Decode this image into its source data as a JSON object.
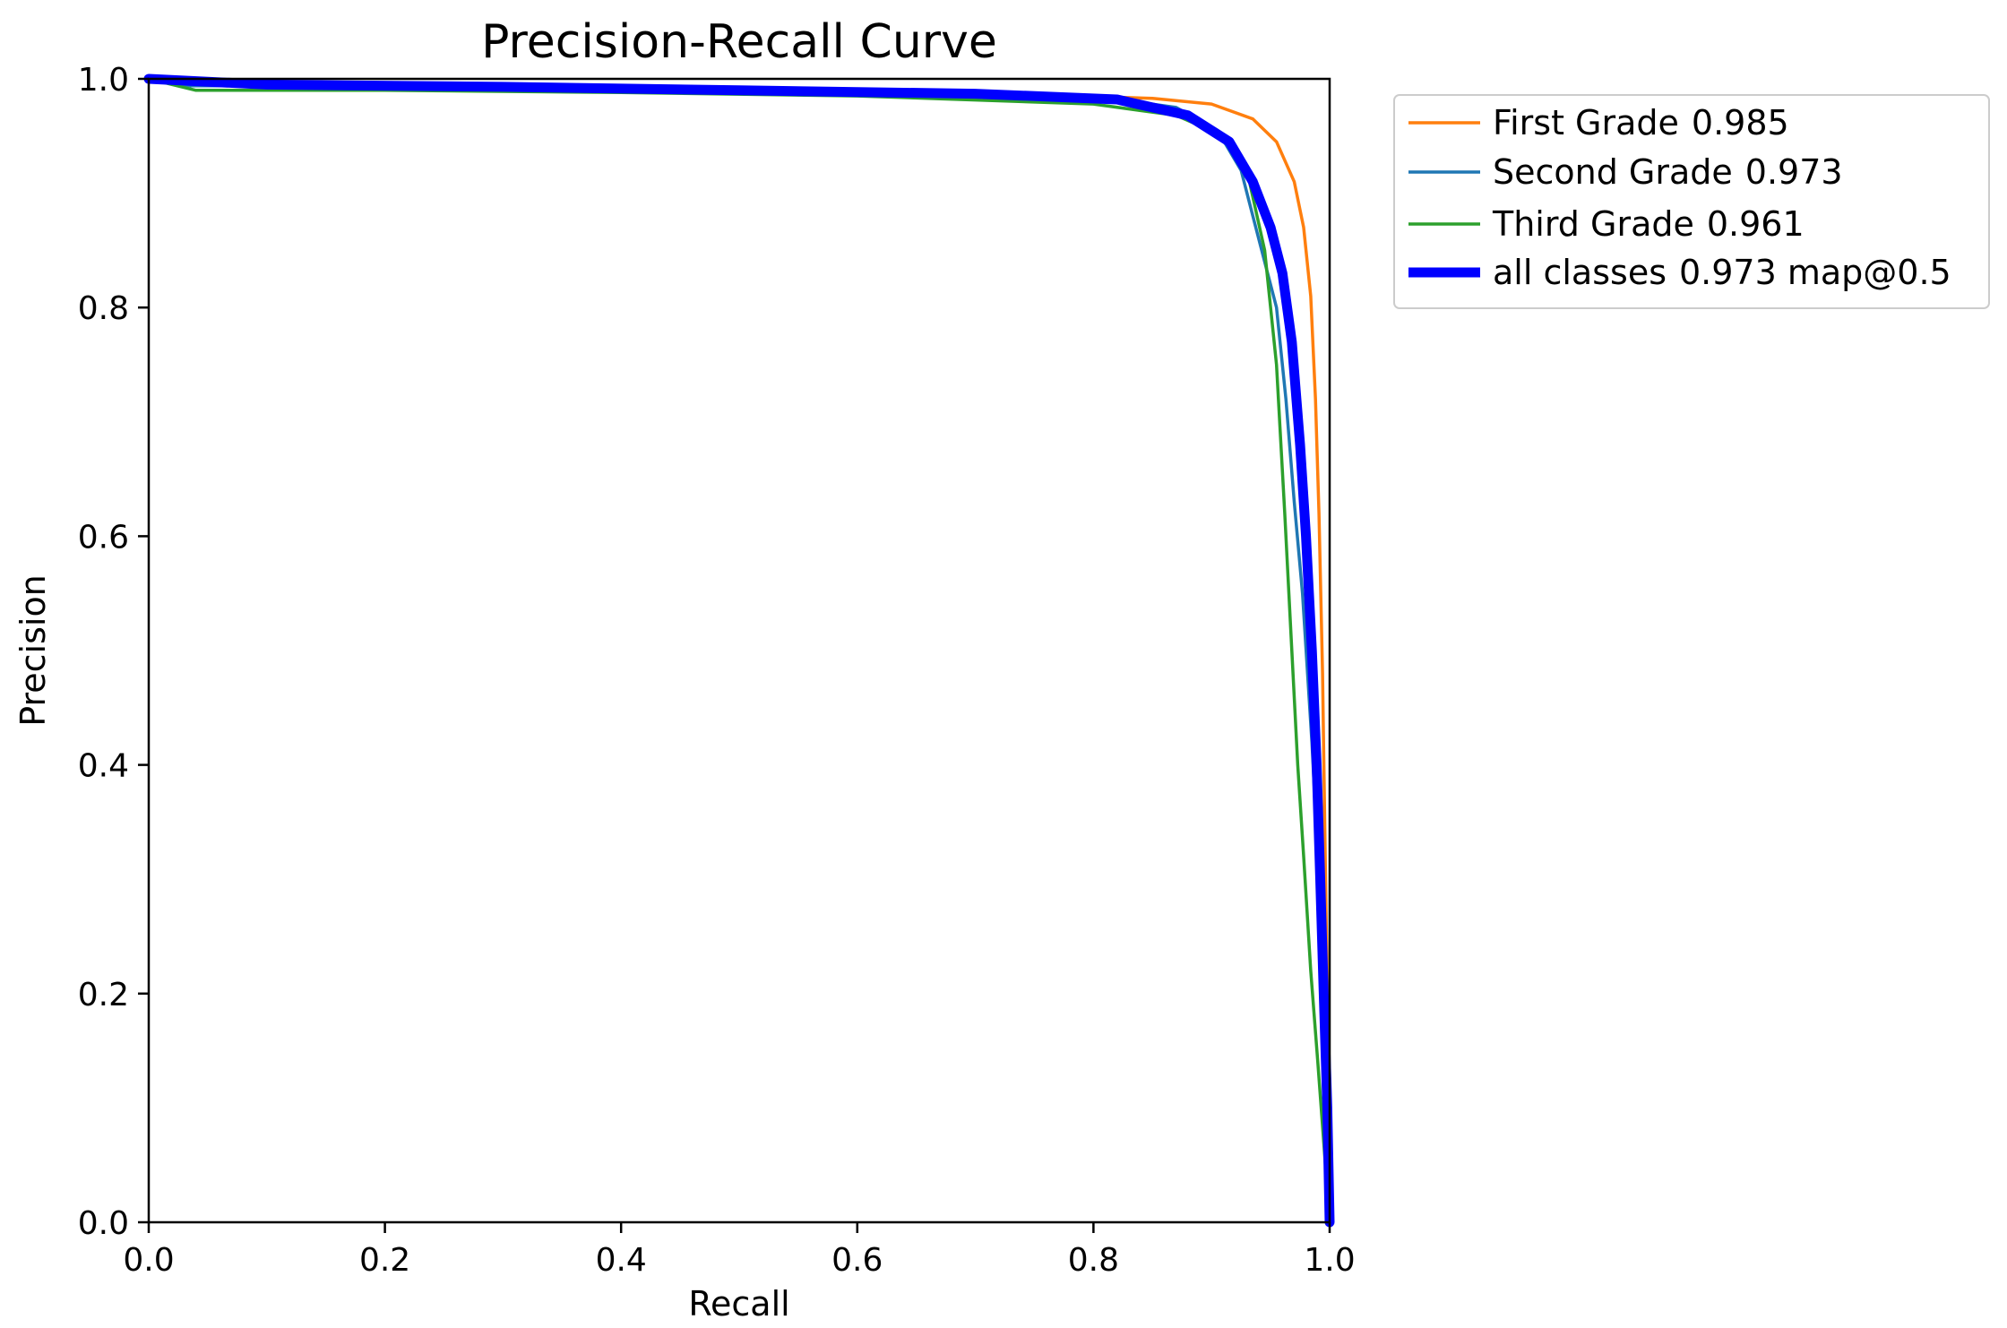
{
  "chart_data": {
    "type": "line",
    "title": "Precision-Recall Curve",
    "xlabel": "Recall",
    "ylabel": "Precision",
    "xlim": [
      0,
      1
    ],
    "ylim": [
      0,
      1
    ],
    "grid": false,
    "legend_position": "outside top-right",
    "x_ticks": [
      "0.0",
      "0.2",
      "0.4",
      "0.6",
      "0.8",
      "1.0"
    ],
    "y_ticks": [
      "0.0",
      "0.2",
      "0.4",
      "0.6",
      "0.8",
      "1.0"
    ],
    "series": [
      {
        "name": "First Grade",
        "score": "0.985",
        "color": "#ff7f0e",
        "emphasis": "normal",
        "x": [
          0.0,
          0.05,
          0.2,
          0.4,
          0.6,
          0.75,
          0.85,
          0.9,
          0.935,
          0.955,
          0.97,
          0.978,
          0.984,
          0.988,
          0.991,
          0.994,
          0.996,
          0.998,
          0.999,
          1.0
        ],
        "y": [
          1.0,
          0.995,
          0.993,
          0.991,
          0.989,
          0.986,
          0.983,
          0.978,
          0.965,
          0.945,
          0.91,
          0.87,
          0.81,
          0.72,
          0.62,
          0.48,
          0.34,
          0.2,
          0.1,
          0.0
        ]
      },
      {
        "name": "Second Grade",
        "score": "0.973",
        "color": "#1f77b4",
        "emphasis": "normal",
        "x": [
          0.0,
          0.035,
          0.1,
          0.3,
          0.5,
          0.7,
          0.8,
          0.87,
          0.905,
          0.925,
          0.935,
          0.945,
          0.955,
          0.963,
          0.97,
          0.977,
          0.985,
          0.991,
          0.995,
          0.998,
          1.0
        ],
        "y": [
          1.0,
          0.994,
          0.994,
          0.993,
          0.991,
          0.988,
          0.985,
          0.975,
          0.955,
          0.92,
          0.88,
          0.84,
          0.8,
          0.72,
          0.63,
          0.55,
          0.42,
          0.3,
          0.18,
          0.08,
          0.0
        ]
      },
      {
        "name": "Third Grade",
        "score": "0.961",
        "color": "#2ca02c",
        "emphasis": "normal",
        "x": [
          0.0,
          0.04,
          0.2,
          0.4,
          0.6,
          0.8,
          0.87,
          0.91,
          0.93,
          0.945,
          0.955,
          0.962,
          0.968,
          0.973,
          0.978,
          0.984,
          0.99,
          0.995,
          1.0
        ],
        "y": [
          1.0,
          0.99,
          0.99,
          0.988,
          0.985,
          0.978,
          0.968,
          0.95,
          0.92,
          0.85,
          0.75,
          0.62,
          0.5,
          0.4,
          0.32,
          0.22,
          0.14,
          0.07,
          0.0
        ]
      },
      {
        "name": "all classes",
        "score": "0.973 map@0.5",
        "color": "#0000ff",
        "emphasis": "thick",
        "x": [
          0.0,
          0.1,
          0.3,
          0.5,
          0.7,
          0.82,
          0.88,
          0.915,
          0.935,
          0.95,
          0.96,
          0.968,
          0.975,
          0.98,
          0.985,
          0.989,
          0.992,
          0.995,
          0.998,
          1.0
        ],
        "y": [
          1.0,
          0.995,
          0.993,
          0.99,
          0.987,
          0.982,
          0.968,
          0.945,
          0.91,
          0.87,
          0.83,
          0.77,
          0.68,
          0.6,
          0.5,
          0.4,
          0.3,
          0.2,
          0.1,
          0.0
        ]
      }
    ]
  }
}
